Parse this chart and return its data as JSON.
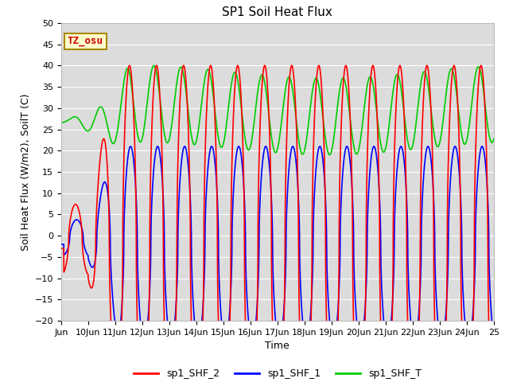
{
  "title": "SP1 Soil Heat Flux",
  "ylabel": "Soil Heat Flux (W/m2), SoilT (C)",
  "xlabel": "Time",
  "xlim": [
    0,
    16
  ],
  "ylim": [
    -20,
    50
  ],
  "yticks": [
    -20,
    -15,
    -10,
    -5,
    0,
    5,
    10,
    15,
    20,
    25,
    30,
    35,
    40,
    45,
    50
  ],
  "xtick_labels": [
    "Jun",
    "10Jun",
    "11Jun",
    "12Jun",
    "13Jun",
    "14Jun",
    "15Jun",
    "16Jun",
    "17Jun",
    "18Jun",
    "19Jun",
    "20Jun",
    "21Jun",
    "22Jun",
    "23Jun",
    "24Jun",
    "25"
  ],
  "xtick_positions": [
    0,
    1,
    2,
    3,
    4,
    5,
    6,
    7,
    8,
    9,
    10,
    11,
    12,
    13,
    14,
    15,
    16
  ],
  "color_shf2": "#FF0000",
  "color_shf1": "#0000FF",
  "color_shfT": "#00CC00",
  "bg_color": "#DCDCDC",
  "annotation_text": "TZ_osu",
  "annotation_bg": "#FFFFCC",
  "annotation_border": "#AA8800",
  "legend_labels": [
    "sp1_SHF_2",
    "sp1_SHF_1",
    "sp1_SHF_T"
  ],
  "linewidth": 1.2,
  "title_fontsize": 11,
  "label_fontsize": 9,
  "tick_fontsize": 8
}
